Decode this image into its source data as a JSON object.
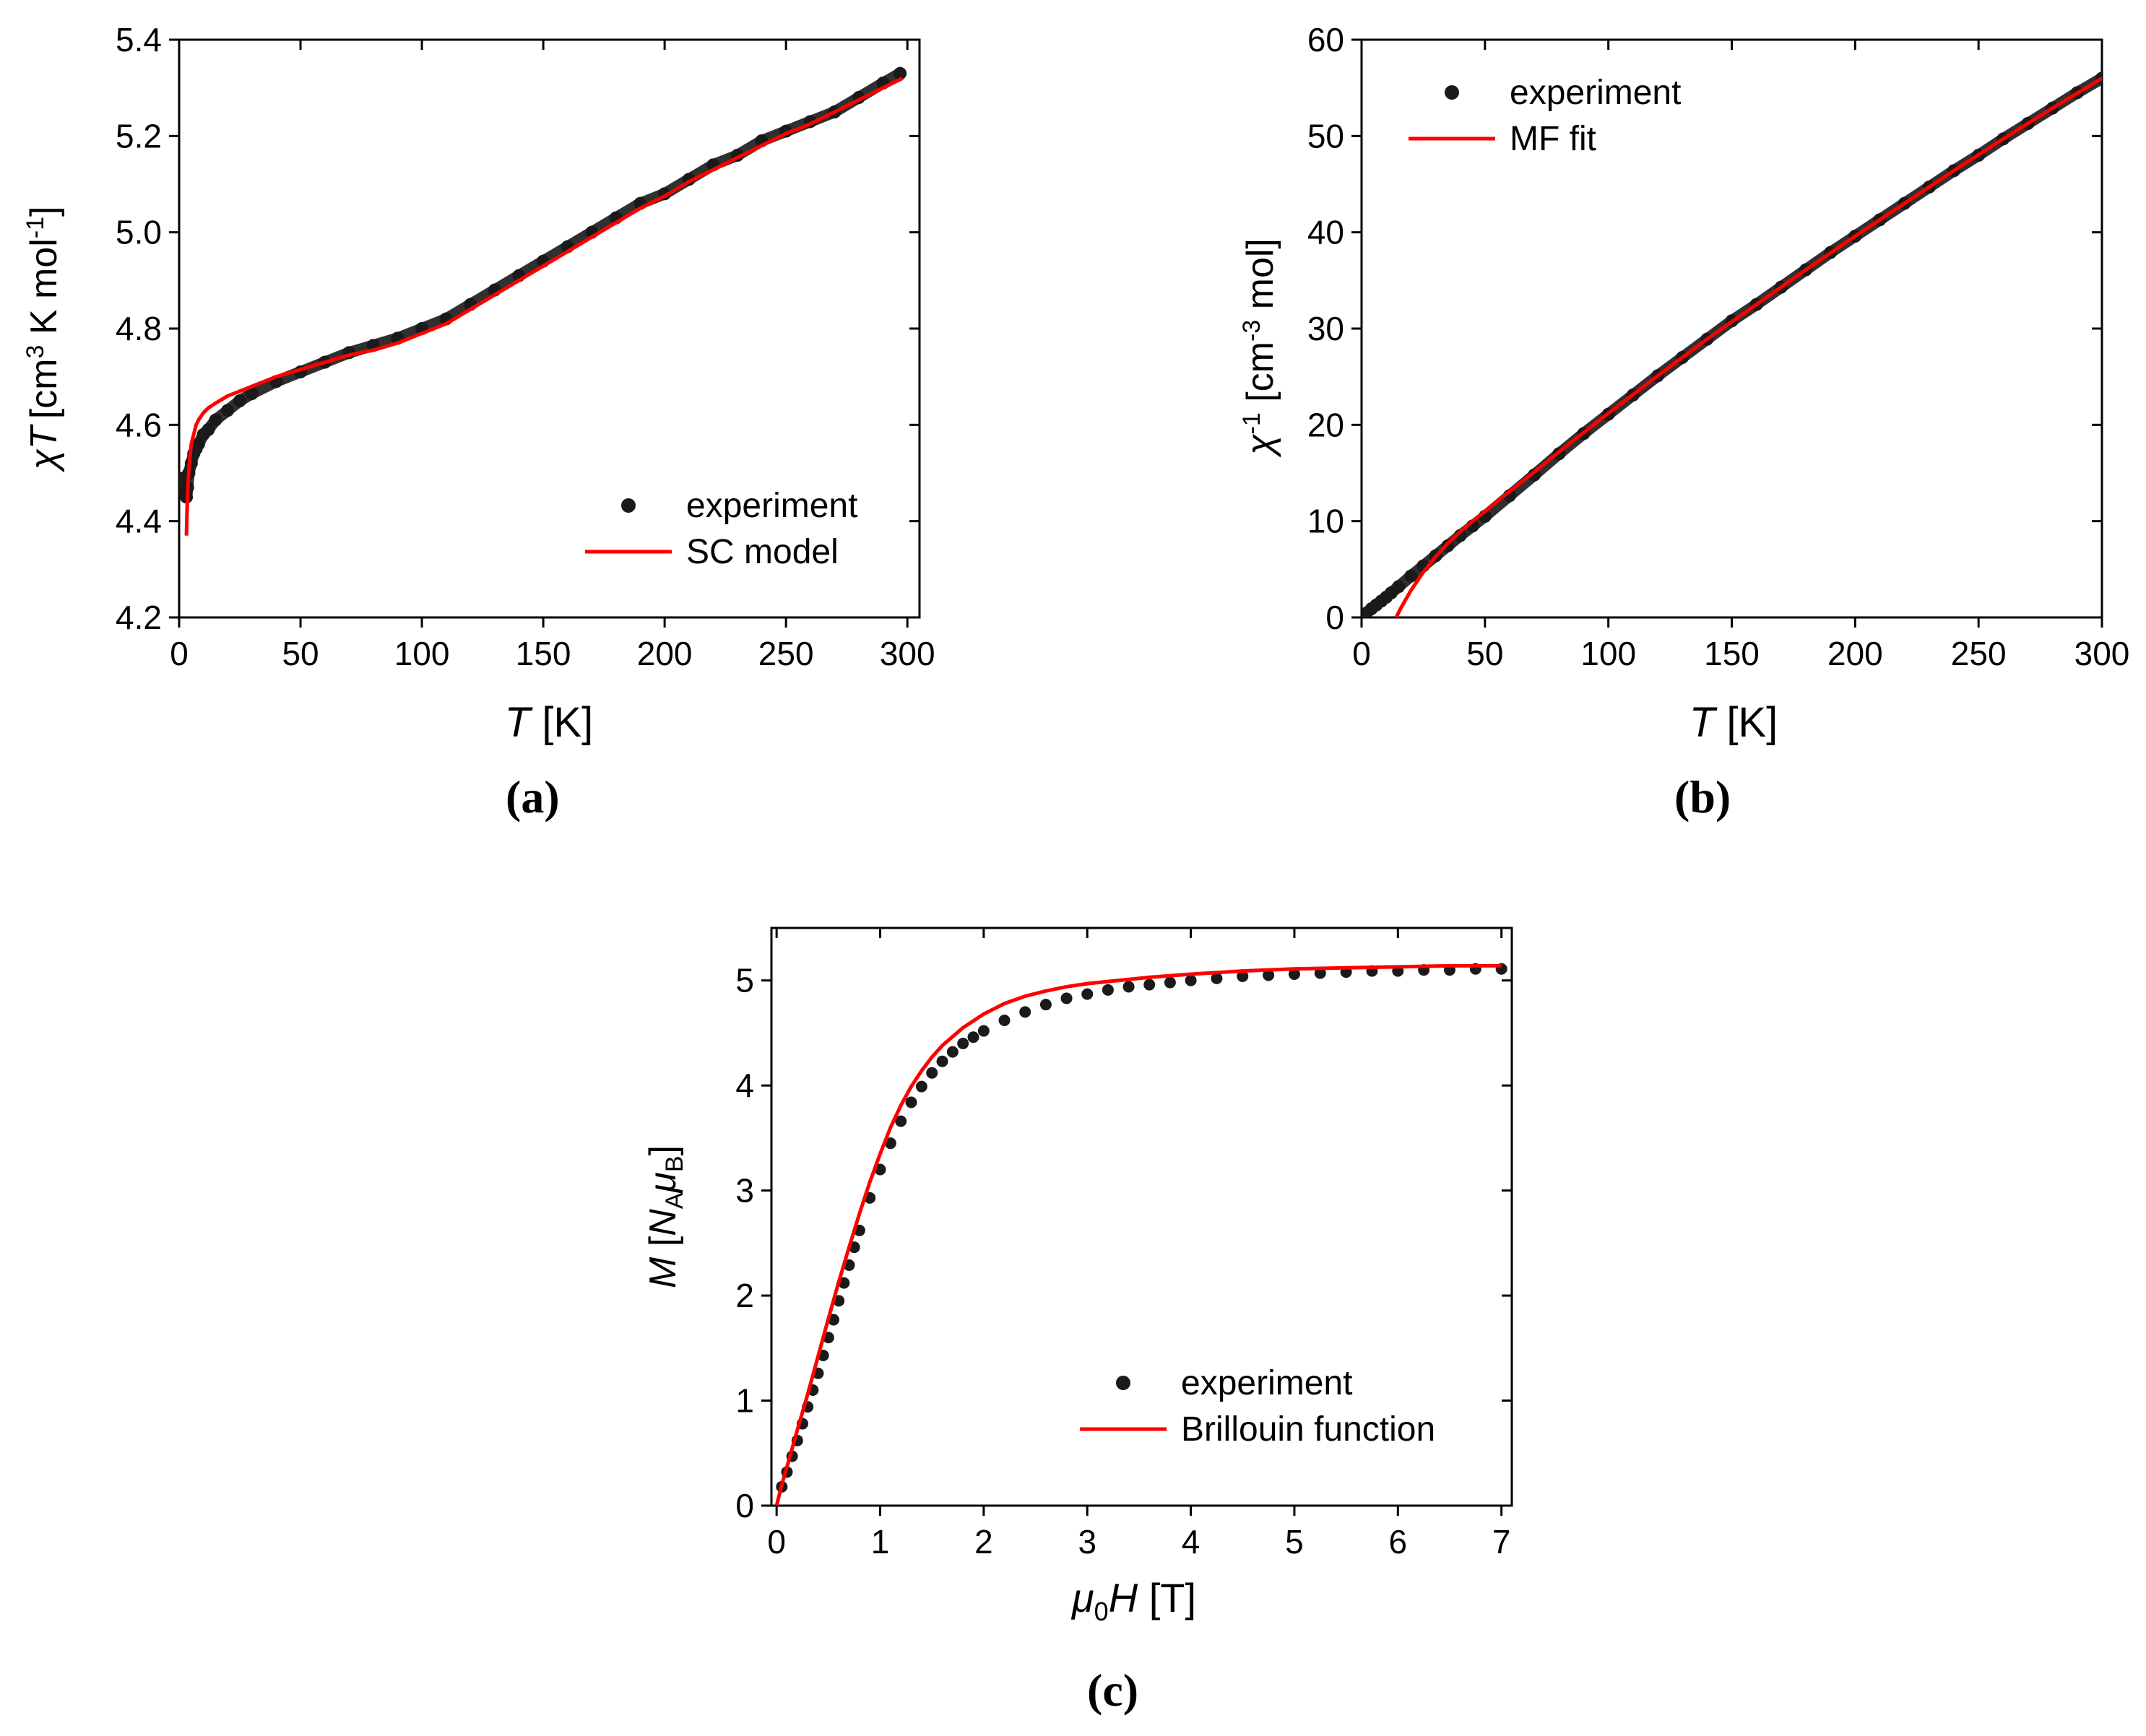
{
  "figure": {
    "labels": {
      "a": "(a)",
      "b": "(b)",
      "c": "(c)"
    }
  },
  "colors": {
    "experiment": "#1a1a1a",
    "fit": "#ff0000",
    "axis": "#000000"
  },
  "chart_data": [
    {
      "id": "a",
      "type": "scatter",
      "xlabel": {
        "sym": "T",
        "unit": " [K]"
      },
      "ylabel": {
        "pre": "[cm",
        "sup1": "3",
        "mid": " K mol",
        "sup2": "-1",
        "post": "]",
        "sym": "χT"
      },
      "xlim": [
        0,
        305
      ],
      "ylim": [
        4.2,
        5.4
      ],
      "xticks": [
        0,
        50,
        100,
        150,
        200,
        250,
        300
      ],
      "xtick_labels": [
        "0",
        "50",
        "100",
        "150",
        "200",
        "250",
        "300"
      ],
      "yticks": [
        4.2,
        4.4,
        4.6,
        4.8,
        5.0,
        5.2,
        5.4
      ],
      "ytick_labels": [
        "4.2",
        "4.4",
        "4.6",
        "4.8",
        "5.0",
        "5.2",
        "5.4"
      ],
      "legend": {
        "position": "bottom-right",
        "experiment": "experiment",
        "fit": "SC model"
      },
      "series": [
        {
          "name": "experiment",
          "style": "markers",
          "x": [
            2,
            2.5,
            3,
            3.5,
            4,
            5,
            6,
            7,
            8,
            10,
            12,
            15,
            20,
            25,
            30,
            40,
            50,
            60,
            70,
            80,
            90,
            100,
            110,
            120,
            130,
            140,
            150,
            160,
            170,
            180,
            190,
            200,
            210,
            220,
            230,
            240,
            250,
            260,
            270,
            280,
            290,
            297
          ],
          "y": [
            4.49,
            4.46,
            4.45,
            4.47,
            4.5,
            4.52,
            4.54,
            4.55,
            4.56,
            4.58,
            4.59,
            4.61,
            4.63,
            4.65,
            4.665,
            4.69,
            4.71,
            4.73,
            4.75,
            4.765,
            4.78,
            4.8,
            4.82,
            4.85,
            4.88,
            4.91,
            4.94,
            4.97,
            5.0,
            5.03,
            5.06,
            5.08,
            5.11,
            5.14,
            5.16,
            5.19,
            5.21,
            5.23,
            5.25,
            5.28,
            5.31,
            5.33
          ]
        },
        {
          "name": "SC model",
          "style": "line",
          "x": [
            3,
            3.3,
            3.7,
            4.2,
            5,
            6,
            7,
            8,
            10,
            12,
            15,
            20,
            25,
            30,
            40,
            50,
            60,
            70,
            80,
            90,
            100,
            110,
            120,
            130,
            140,
            150,
            160,
            170,
            180,
            190,
            200,
            210,
            220,
            230,
            240,
            250,
            260,
            270,
            280,
            290,
            298
          ],
          "y": [
            4.37,
            4.43,
            4.48,
            4.52,
            4.56,
            4.58,
            4.6,
            4.61,
            4.625,
            4.635,
            4.645,
            4.66,
            4.67,
            4.68,
            4.7,
            4.715,
            4.73,
            4.745,
            4.755,
            4.77,
            4.79,
            4.81,
            4.84,
            4.87,
            4.9,
            4.93,
            4.96,
            4.99,
            5.02,
            5.05,
            5.075,
            5.105,
            5.13,
            5.155,
            5.18,
            5.205,
            5.225,
            5.25,
            5.275,
            5.3,
            5.32
          ]
        }
      ]
    },
    {
      "id": "b",
      "type": "scatter",
      "xlabel": {
        "sym": "T",
        "unit": " [K]"
      },
      "ylabel": {
        "sym": "χ",
        "sup": "-1",
        "pre": " [cm",
        "sup2": "-3",
        "post": " mol]"
      },
      "xlim": [
        0,
        300
      ],
      "ylim": [
        0,
        60
      ],
      "xticks": [
        0,
        50,
        100,
        150,
        200,
        250,
        300
      ],
      "xtick_labels": [
        "0",
        "50",
        "100",
        "150",
        "200",
        "250",
        "300"
      ],
      "yticks": [
        0,
        10,
        20,
        30,
        40,
        50,
        60
      ],
      "ytick_labels": [
        "0",
        "10",
        "20",
        "30",
        "40",
        "50",
        "60"
      ],
      "legend": {
        "position": "top-left",
        "experiment": "experiment",
        "fit": "MF fit"
      },
      "series": [
        {
          "name": "experiment",
          "style": "markers",
          "x": [
            2,
            4,
            6,
            8,
            10,
            12,
            15,
            20,
            25,
            30,
            35,
            40,
            45,
            50,
            60,
            70,
            80,
            90,
            100,
            110,
            120,
            130,
            140,
            150,
            160,
            170,
            180,
            190,
            200,
            210,
            220,
            230,
            240,
            250,
            260,
            270,
            280,
            290,
            300
          ],
          "y": [
            0.45,
            0.9,
            1.3,
            1.7,
            2.1,
            2.55,
            3.2,
            4.3,
            5.35,
            6.4,
            7.45,
            8.5,
            9.5,
            10.5,
            12.65,
            14.8,
            17.0,
            19.1,
            21.1,
            23.1,
            25.1,
            27.0,
            28.9,
            30.8,
            32.5,
            34.3,
            36.1,
            37.9,
            39.6,
            41.3,
            43.0,
            44.7,
            46.4,
            48.0,
            49.7,
            51.3,
            52.9,
            54.5,
            56.0
          ]
        },
        {
          "name": "MF fit",
          "style": "line",
          "x": [
            14,
            16,
            20,
            25,
            30,
            35,
            40,
            45,
            50,
            60,
            70,
            80,
            90,
            100,
            120,
            140,
            160,
            180,
            200,
            220,
            240,
            260,
            280,
            300
          ],
          "y": [
            0,
            1.0,
            2.8,
            4.7,
            6.3,
            7.7,
            8.9,
            10.0,
            11.0,
            13.1,
            15.1,
            17.2,
            19.2,
            21.2,
            25.1,
            28.9,
            32.5,
            36.1,
            39.6,
            43.0,
            46.4,
            49.7,
            52.9,
            56.0
          ]
        }
      ]
    },
    {
      "id": "c",
      "type": "scatter",
      "xlabel": {
        "sym": "μ",
        "sub": "0",
        "sym2": "H",
        "unit": " [T]"
      },
      "ylabel": {
        "sym": "M",
        "pre": " [",
        "n": "N",
        "nsub": "A",
        "mu": "μ",
        "musub": "B",
        "post": "]"
      },
      "xlim": [
        -0.05,
        7.1
      ],
      "ylim": [
        0,
        5.5
      ],
      "xticks": [
        0,
        1,
        2,
        3,
        4,
        5,
        6,
        7
      ],
      "xtick_labels": [
        "0",
        "1",
        "2",
        "3",
        "4",
        "5",
        "6",
        "7"
      ],
      "yticks": [
        0,
        1,
        2,
        3,
        4,
        5
      ],
      "ytick_labels": [
        "0",
        "1",
        "2",
        "3",
        "4",
        "5"
      ],
      "legend": {
        "position": "bottom-right",
        "experiment": "experiment",
        "fit": "Brillouin function"
      },
      "series": [
        {
          "name": "experiment",
          "style": "markers",
          "x": [
            0.05,
            0.1,
            0.15,
            0.2,
            0.25,
            0.3,
            0.35,
            0.4,
            0.45,
            0.5,
            0.55,
            0.6,
            0.65,
            0.7,
            0.75,
            0.8,
            0.9,
            1.0,
            1.1,
            1.2,
            1.3,
            1.4,
            1.5,
            1.6,
            1.7,
            1.8,
            1.9,
            2.0,
            2.2,
            2.4,
            2.6,
            2.8,
            3.0,
            3.2,
            3.4,
            3.6,
            3.8,
            4.0,
            4.25,
            4.5,
            4.75,
            5.0,
            5.25,
            5.5,
            5.75,
            6.0,
            6.25,
            6.5,
            6.75,
            7.0
          ],
          "y": [
            0.18,
            0.32,
            0.47,
            0.62,
            0.78,
            0.94,
            1.1,
            1.26,
            1.43,
            1.6,
            1.77,
            1.95,
            2.12,
            2.29,
            2.46,
            2.62,
            2.93,
            3.2,
            3.45,
            3.66,
            3.84,
            3.99,
            4.12,
            4.23,
            4.32,
            4.4,
            4.46,
            4.52,
            4.62,
            4.7,
            4.77,
            4.83,
            4.87,
            4.91,
            4.94,
            4.96,
            4.98,
            5.0,
            5.02,
            5.04,
            5.05,
            5.06,
            5.07,
            5.08,
            5.09,
            5.09,
            5.1,
            5.1,
            5.11,
            5.11
          ]
        },
        {
          "name": "Brillouin function",
          "style": "line",
          "x": [
            0.0,
            0.05,
            0.1,
            0.2,
            0.3,
            0.4,
            0.5,
            0.6,
            0.7,
            0.8,
            0.9,
            1.0,
            1.1,
            1.2,
            1.3,
            1.4,
            1.5,
            1.6,
            1.8,
            2.0,
            2.2,
            2.4,
            2.6,
            2.8,
            3.0,
            3.3,
            3.6,
            4.0,
            4.5,
            5.0,
            5.5,
            6.0,
            6.5,
            7.0
          ],
          "y": [
            0.0,
            0.2,
            0.37,
            0.72,
            1.06,
            1.42,
            1.78,
            2.13,
            2.46,
            2.78,
            3.08,
            3.35,
            3.6,
            3.81,
            3.99,
            4.14,
            4.27,
            4.38,
            4.55,
            4.68,
            4.78,
            4.85,
            4.9,
            4.94,
            4.97,
            5.0,
            5.03,
            5.06,
            5.09,
            5.11,
            5.12,
            5.13,
            5.14,
            5.14
          ]
        }
      ]
    }
  ]
}
